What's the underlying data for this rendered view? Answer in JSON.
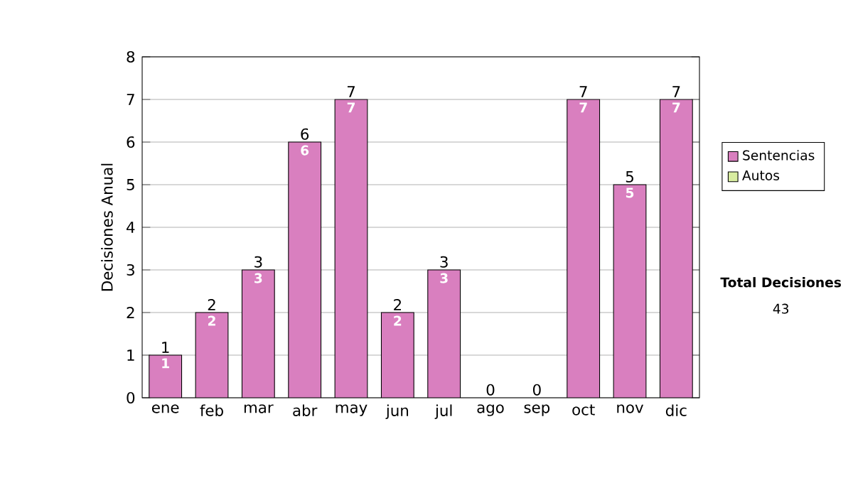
{
  "chart_data": {
    "type": "bar",
    "stacked": true,
    "ylabel": "Decisiones Anual",
    "categories": [
      "ene",
      "feb",
      "mar",
      "abr",
      "may",
      "jun",
      "jul",
      "ago",
      "sep",
      "oct",
      "nov",
      "dic"
    ],
    "series": [
      {
        "name": "Sentencias",
        "color": "#d97fbf",
        "values": [
          1,
          2,
          3,
          6,
          7,
          2,
          3,
          0,
          0,
          7,
          5,
          7
        ],
        "value_labels": [
          "1",
          "2",
          "3",
          "6",
          "7",
          "2",
          "3",
          null,
          null,
          "7",
          "5",
          "7"
        ]
      },
      {
        "name": "Autos",
        "color": "#d8eca0",
        "values": [
          0,
          0,
          0,
          0,
          0,
          0,
          0,
          0,
          0,
          0,
          0,
          0
        ]
      }
    ],
    "totals": [
      "1",
      "2",
      "3",
      "6",
      "7",
      "2",
      "3",
      "0",
      "0",
      "7",
      "5",
      "7"
    ],
    "ylim": [
      0,
      8
    ],
    "yticks": [
      0,
      1,
      2,
      3,
      4,
      5,
      6,
      7,
      8
    ],
    "grid": "y",
    "legend": "right",
    "annotations": [
      "**Total Decisiones**",
      "43"
    ]
  }
}
